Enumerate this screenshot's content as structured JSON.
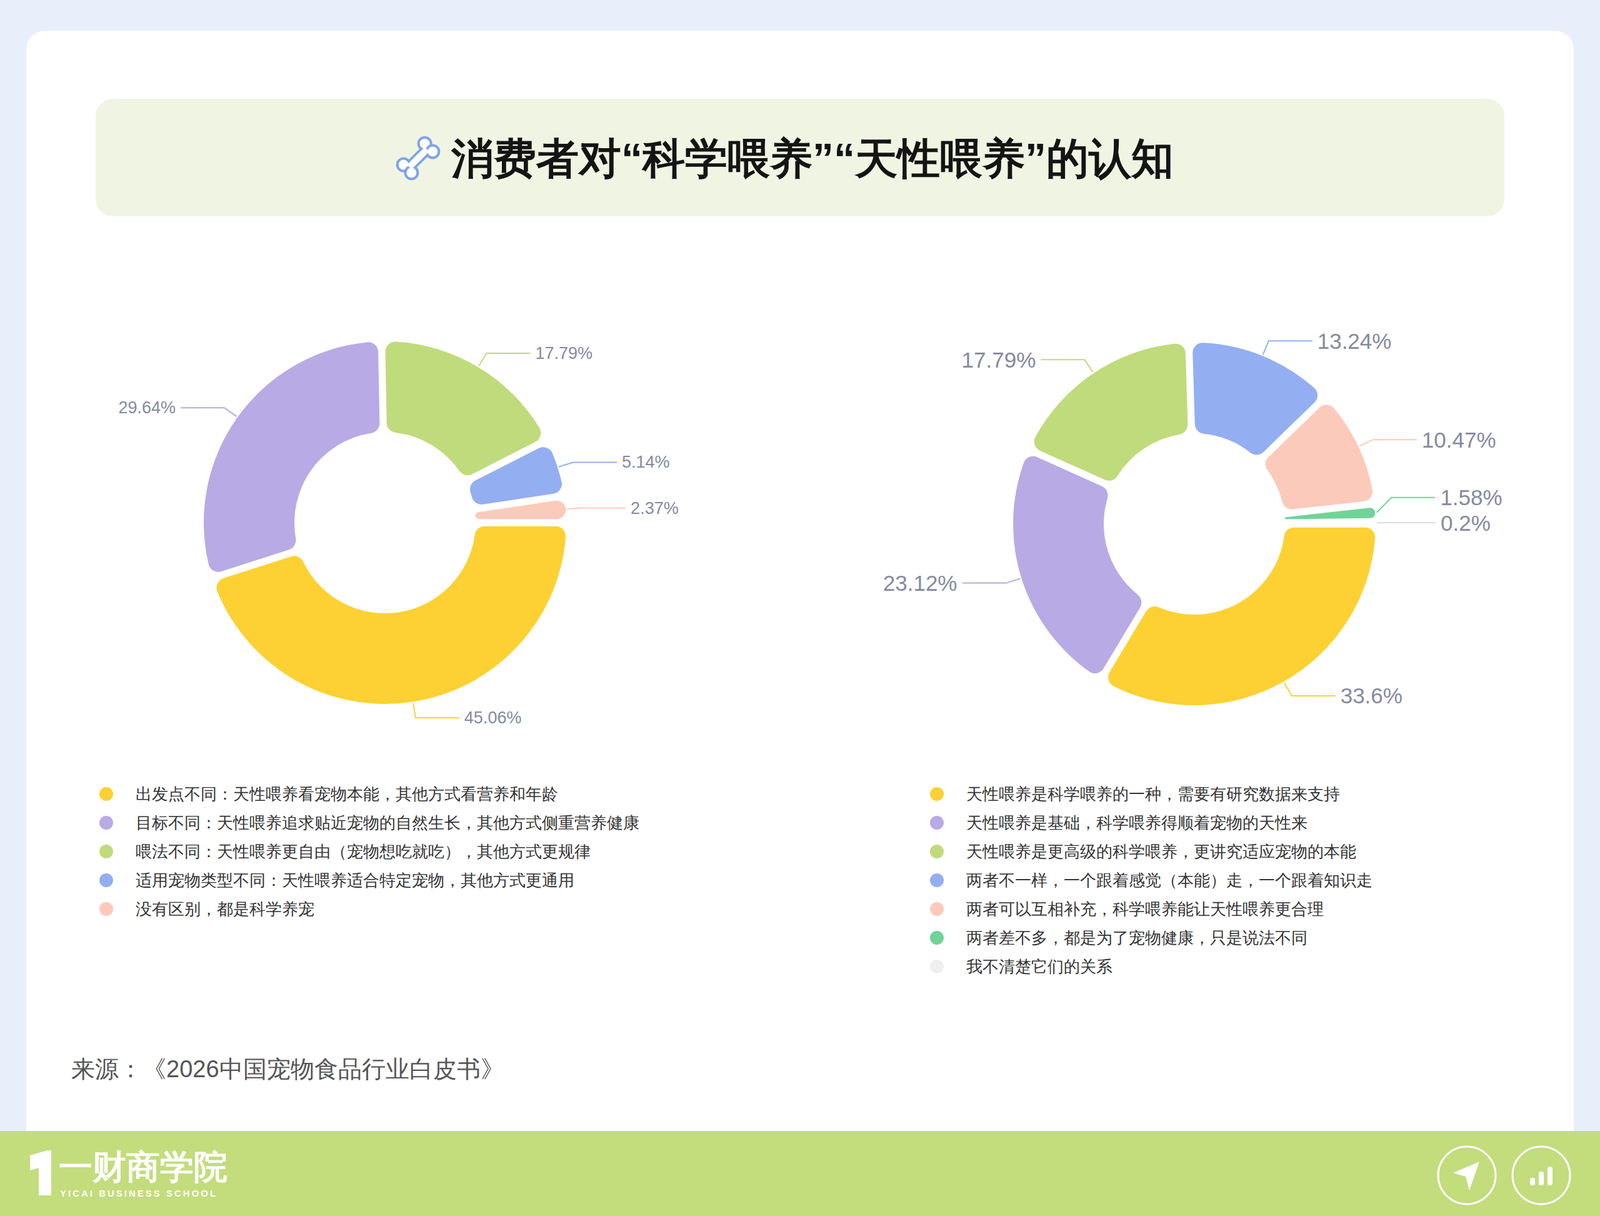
{
  "title": "消费者对“科学喂养”“天性喂养”的认知",
  "source": "来源：《2026中国宠物食品行业白皮书》",
  "brand": "一财商学院",
  "brand_en": "YICAI BUSINESS SCHOOL",
  "chart_data": [
    {
      "type": "donut",
      "categories": [
        "出发点不同：天性喂养看宠物本能，其他方式看营养和年龄",
        "目标不同：天性喂养追求贴近宠物的自然生长，其他方式侧重营养健康",
        "喂法不同：天性喂养更自由（宠物想吃就吃），其他方式更规律",
        "适用宠物类型不同：天性喂养适合特定宠物，其他方式更通用",
        "没有区别，都是科学养宠"
      ],
      "values": [
        45.06,
        29.64,
        17.79,
        5.14,
        2.37
      ],
      "value_labels": [
        "45.06%",
        "29.64%",
        "17.79%",
        "5.14%",
        "2.37%"
      ],
      "colors": [
        "#fdd133",
        "#b8aae4",
        "#c0db7b",
        "#94aef2",
        "#fccabb"
      ],
      "data_labels": true,
      "legend": "bottom"
    },
    {
      "type": "donut",
      "categories": [
        "天性喂养是科学喂养的一种，需要有研究数据来支持",
        "天性喂养是基础，科学喂养得顺着宠物的天性来",
        "天性喂养是更高级的科学喂养，更讲究适应宠物的本能",
        "两者不一样，一个跟着感觉（本能）走，一个跟着知识走",
        "两者可以互相补充，科学喂养能让天性喂养更合理",
        "两者差不多，都是为了宠物健康，只是说法不同",
        "我不清楚它们的关系"
      ],
      "values": [
        33.6,
        23.12,
        17.79,
        13.24,
        10.47,
        1.58,
        0.2
      ],
      "value_labels": [
        "33.6%",
        "23.12%",
        "17.79%",
        "13.24%",
        "10.47%",
        "1.58%",
        "0.2%"
      ],
      "colors": [
        "#fdd133",
        "#b8aae4",
        "#c0db7b",
        "#94aef2",
        "#fccabb",
        "#6fd498",
        "#efefef"
      ],
      "data_labels": true,
      "legend": "bottom"
    }
  ]
}
